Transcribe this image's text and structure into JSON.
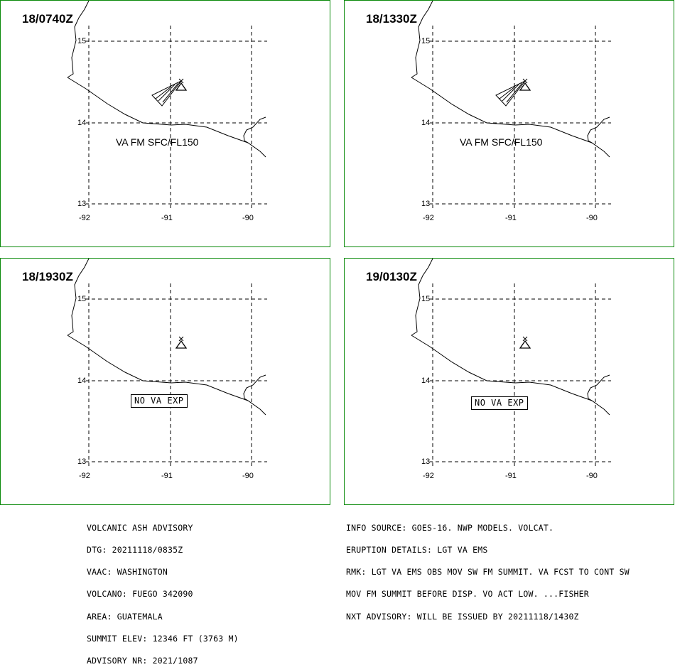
{
  "panels": [
    {
      "time": "18/0740Z",
      "label": "VA FM SFC/FL150",
      "label_style": "text",
      "ash_polygon": true
    },
    {
      "time": "18/1330Z",
      "label": "VA FM SFC/FL150",
      "label_style": "text",
      "ash_polygon": true
    },
    {
      "time": "18/1930Z",
      "label": "NO VA EXP",
      "label_style": "box",
      "ash_polygon": false
    },
    {
      "time": "19/0130Z",
      "label": "NO VA EXP",
      "label_style": "box",
      "ash_polygon": false
    }
  ],
  "axes": {
    "lat_labels": [
      "15",
      "14",
      "13"
    ],
    "lon_labels": [
      "-92",
      "-91",
      "-90"
    ]
  },
  "footer_left": [
    "VOLCANIC ASH ADVISORY",
    "DTG: 20211118/0835Z",
    "VAAC: WASHINGTON",
    "VOLCANO: FUEGO 342090",
    "AREA: GUATEMALA",
    "SUMMIT ELEV: 12346 FT (3763 M)",
    "ADVISORY NR: 2021/1087"
  ],
  "footer_right": [
    "INFO SOURCE: GOES-16. NWP MODELS. VOLCAT.",
    "ERUPTION DETAILS: LGT VA EMS",
    "RMK: LGT VA EMS OBS MOV SW FM SUMMIT. VA FCST TO CONT SW",
    "MOV FM SUMMIT BEFORE DISP. VO ACT LOW. ...FISHER",
    "NXT ADVISORY: WILL BE ISSUED BY 20211118/1430Z"
  ],
  "colors": {
    "panel_border": "#0a8a0a",
    "map_lines": "#000000",
    "background": "#ffffff"
  }
}
